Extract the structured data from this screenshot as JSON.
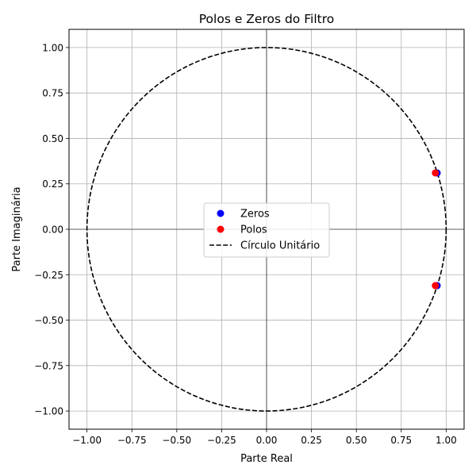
{
  "chart_data": {
    "type": "scatter",
    "title": "Polos e Zeros do Filtro",
    "xlabel": "Parte Real",
    "ylabel": "Parte Imaginária",
    "xlim": [
      -1.1,
      1.1
    ],
    "ylim": [
      -1.1,
      1.1
    ],
    "xticks": [
      -1.0,
      -0.75,
      -0.5,
      -0.25,
      0.0,
      0.25,
      0.5,
      0.75,
      1.0
    ],
    "yticks": [
      -1.0,
      -0.75,
      -0.5,
      -0.25,
      0.0,
      0.25,
      0.5,
      0.75,
      1.0
    ],
    "xtick_labels": [
      "−1.00",
      "−0.75",
      "−0.50",
      "−0.25",
      "0.00",
      "0.25",
      "0.50",
      "0.75",
      "1.00"
    ],
    "ytick_labels": [
      "−1.00",
      "−0.75",
      "−0.50",
      "−0.25",
      "0.00",
      "0.25",
      "0.50",
      "0.75",
      "1.00"
    ],
    "grid": true,
    "legend_position": "center",
    "series": [
      {
        "name": "Zeros",
        "kind": "scatter",
        "color": "#0000ff",
        "points": [
          [
            0.95,
            0.31
          ],
          [
            0.95,
            -0.31
          ]
        ]
      },
      {
        "name": "Polos",
        "kind": "scatter",
        "color": "#ff0000",
        "points": [
          [
            0.94,
            0.31
          ],
          [
            0.94,
            -0.31
          ]
        ]
      },
      {
        "name": "Círculo Unitário",
        "kind": "line",
        "style": "dashed",
        "color": "#000000",
        "shape": "unit-circle",
        "radius": 1.0
      }
    ]
  }
}
